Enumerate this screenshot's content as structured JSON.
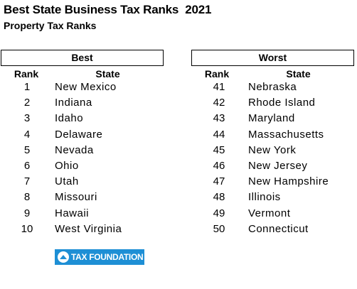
{
  "title": "Best State Business Tax Ranks  2021",
  "subtitle": "Property Tax Ranks",
  "columns": {
    "rank": "Rank",
    "state": "State"
  },
  "best": {
    "header": "Best",
    "rows": [
      {
        "rank": "1",
        "state": "New Mexico"
      },
      {
        "rank": "2",
        "state": "Indiana"
      },
      {
        "rank": "3",
        "state": "Idaho"
      },
      {
        "rank": "4",
        "state": "Delaware"
      },
      {
        "rank": "5",
        "state": "Nevada"
      },
      {
        "rank": "6",
        "state": "Ohio"
      },
      {
        "rank": "7",
        "state": "Utah"
      },
      {
        "rank": "8",
        "state": "Missouri"
      },
      {
        "rank": "9",
        "state": "Hawaii"
      },
      {
        "rank": "10",
        "state": "West Virginia"
      }
    ]
  },
  "worst": {
    "header": "Worst",
    "rows": [
      {
        "rank": "41",
        "state": "Nebraska"
      },
      {
        "rank": "42",
        "state": "Rhode Island"
      },
      {
        "rank": "43",
        "state": "Maryland"
      },
      {
        "rank": "44",
        "state": "Massachusetts"
      },
      {
        "rank": "45",
        "state": "New York"
      },
      {
        "rank": "46",
        "state": "New Jersey"
      },
      {
        "rank": "47",
        "state": "New Hampshire"
      },
      {
        "rank": "48",
        "state": "Illinois"
      },
      {
        "rank": "49",
        "state": "Vermont"
      },
      {
        "rank": "50",
        "state": "Connecticut"
      }
    ]
  },
  "logo": {
    "text": "TAX FOUNDATION",
    "icon": "tax-foundation-logo-icon",
    "color": "#1e8fd5"
  }
}
